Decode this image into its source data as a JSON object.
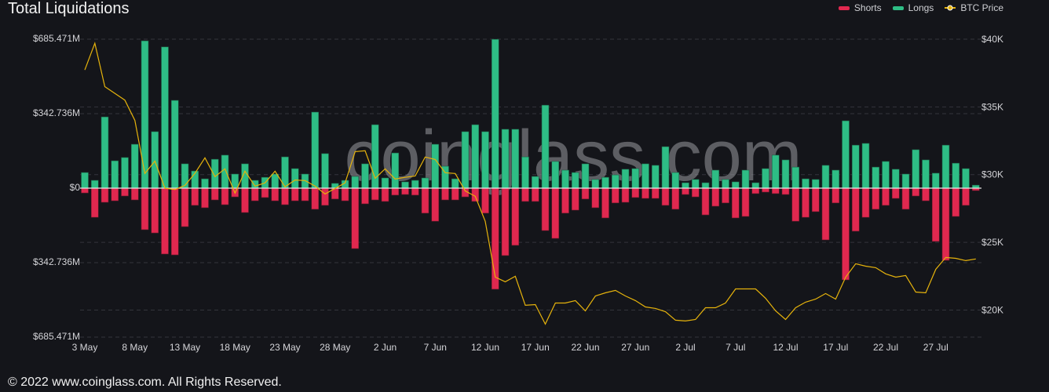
{
  "title": "Total Liquidations",
  "footer": "© 2022 www.coinglass.com. All Rights Reserved.",
  "watermark": "coinglass.com",
  "colors": {
    "shorts": "#e0284f",
    "longs": "#2ebd85",
    "btc_price": "#e6b30c",
    "background": "#14151a"
  },
  "legend": [
    {
      "label": "Shorts",
      "color": "#e0284f"
    },
    {
      "label": "Longs",
      "color": "#2ebd85"
    },
    {
      "label": "BTC Price",
      "color": "#e6b30c"
    }
  ],
  "chart_data": {
    "type": "bar",
    "title": "Total Liquidations",
    "legend_position": "top-right",
    "grid": true,
    "y_left": {
      "unit": "USD millions",
      "range": [
        -685.471,
        685.471
      ],
      "tick_labels": [
        "$685.471M",
        "$342.736M",
        "$0",
        "$342.736M",
        "$685.471M"
      ]
    },
    "y_right": {
      "unit": "USD",
      "range": [
        18000,
        40000
      ],
      "ticks": [
        40000,
        35000,
        30000,
        25000,
        20000
      ],
      "tick_labels": [
        "$40K",
        "$35K",
        "$30K",
        "$25K",
        "$20K"
      ]
    },
    "x_tick_labels": [
      "3 May",
      "8 May",
      "13 May",
      "18 May",
      "23 May",
      "28 May",
      "2 Jun",
      "7 Jun",
      "12 Jun",
      "17 Jun",
      "22 Jun",
      "27 Jun",
      "2 Jul",
      "7 Jul",
      "12 Jul",
      "17 Jul",
      "22 Jul",
      "27 Jul"
    ],
    "categories": [
      "3 May",
      "4 May",
      "5 May",
      "6 May",
      "7 May",
      "8 May",
      "9 May",
      "10 May",
      "11 May",
      "12 May",
      "13 May",
      "14 May",
      "15 May",
      "16 May",
      "17 May",
      "18 May",
      "19 May",
      "20 May",
      "21 May",
      "22 May",
      "23 May",
      "24 May",
      "25 May",
      "26 May",
      "27 May",
      "28 May",
      "29 May",
      "30 May",
      "31 May",
      "1 Jun",
      "2 Jun",
      "3 Jun",
      "4 Jun",
      "5 Jun",
      "6 Jun",
      "7 Jun",
      "8 Jun",
      "9 Jun",
      "10 Jun",
      "11 Jun",
      "12 Jun",
      "13 Jun",
      "14 Jun",
      "15 Jun",
      "16 Jun",
      "17 Jun",
      "18 Jun",
      "19 Jun",
      "20 Jun",
      "21 Jun",
      "22 Jun",
      "23 Jun",
      "24 Jun",
      "25 Jun",
      "26 Jun",
      "27 Jun",
      "28 Jun",
      "29 Jun",
      "30 Jun",
      "1 Jul",
      "2 Jul",
      "3 Jul",
      "4 Jul",
      "5 Jul",
      "6 Jul",
      "7 Jul",
      "8 Jul",
      "9 Jul",
      "10 Jul",
      "11 Jul",
      "12 Jul",
      "13 Jul",
      "14 Jul",
      "15 Jul",
      "16 Jul",
      "17 Jul",
      "18 Jul",
      "19 Jul",
      "20 Jul",
      "21 Jul",
      "22 Jul",
      "23 Jul",
      "24 Jul",
      "25 Jul",
      "26 Jul",
      "27 Jul",
      "28 Jul",
      "29 Jul",
      "30 Jul",
      "31 Jul"
    ],
    "series": [
      {
        "name": "Longs",
        "axis": "left",
        "values": [
          72,
          36,
          328,
          126,
          141,
          202,
          678,
          260,
          650,
          404,
          112,
          79,
          43,
          133,
          152,
          65,
          112,
          36,
          50,
          65,
          144,
          90,
          65,
          350,
          159,
          22,
          36,
          54,
          112,
          292,
          47,
          162,
          29,
          36,
          47,
          202,
          101,
          43,
          260,
          292,
          260,
          685,
          271,
          271,
          144,
          54,
          382,
          123,
          83,
          72,
          112,
          40,
          50,
          61,
          87,
          90,
          112,
          105,
          191,
          72,
          25,
          40,
          25,
          83,
          40,
          29,
          83,
          25,
          90,
          152,
          130,
          97,
          43,
          40,
          105,
          83,
          310,
          198,
          206,
          97,
          123,
          87,
          65,
          177,
          130,
          69,
          198,
          115,
          90,
          14
        ]
      },
      {
        "name": "Shorts",
        "axis": "left",
        "values": [
          22,
          134,
          65,
          58,
          36,
          54,
          191,
          206,
          303,
          307,
          177,
          79,
          90,
          54,
          76,
          40,
          112,
          58,
          43,
          58,
          76,
          58,
          58,
          97,
          79,
          50,
          58,
          278,
          72,
          54,
          61,
          32,
          29,
          32,
          115,
          152,
          54,
          54,
          40,
          61,
          115,
          465,
          310,
          263,
          61,
          61,
          195,
          231,
          115,
          101,
          50,
          90,
          137,
          68,
          65,
          43,
          47,
          47,
          79,
          97,
          29,
          40,
          123,
          83,
          68,
          137,
          130,
          25,
          18,
          25,
          29,
          152,
          134,
          108,
          238,
          68,
          422,
          198,
          134,
          97,
          79,
          47,
          97,
          36,
          58,
          245,
          332,
          130,
          79,
          11
        ]
      },
      {
        "name": "BTC Price",
        "axis": "right",
        "type": "line",
        "values": [
          37730,
          39700,
          36500,
          36000,
          35500,
          34000,
          30080,
          31000,
          29000,
          28900,
          29200,
          30100,
          31240,
          29850,
          30430,
          28630,
          30250,
          29150,
          29390,
          30250,
          29100,
          29600,
          29560,
          29150,
          28570,
          28980,
          29390,
          31700,
          31760,
          29730,
          30430,
          29680,
          29800,
          29900,
          31300,
          31120,
          30140,
          30080,
          28800,
          28400,
          26550,
          22430,
          22090,
          22490,
          20350,
          20400,
          18960,
          20520,
          20520,
          20700,
          19940,
          21040,
          21270,
          21450,
          21040,
          20700,
          20230,
          20120,
          19880,
          19250,
          19190,
          19300,
          20170,
          20170,
          20520,
          21560,
          21560,
          21560,
          20870,
          19940,
          19300,
          20170,
          20580,
          20810,
          21220,
          20810,
          22430,
          23420,
          23240,
          23130,
          22670,
          22430,
          22550,
          21330,
          21270,
          23010,
          23880,
          23820,
          23650,
          23770
        ]
      }
    ]
  }
}
